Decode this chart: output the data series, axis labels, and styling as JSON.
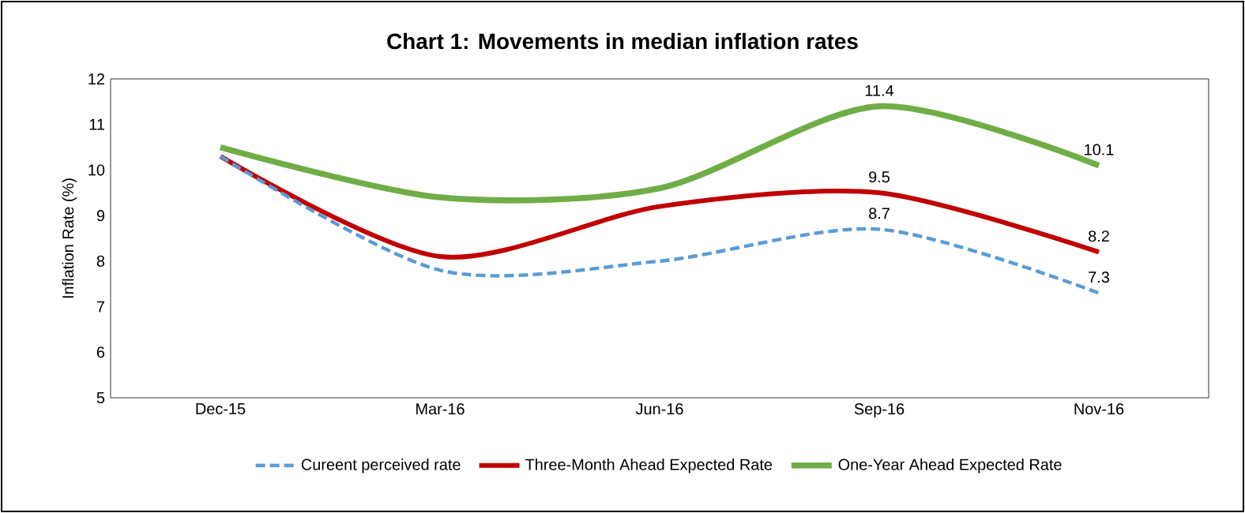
{
  "chart_data": {
    "type": "line",
    "title": "Chart 1: Movements in median inflation rates",
    "ylabel": "Inflation Rate (%)",
    "categories": [
      "Dec-15",
      "Mar-16",
      "Jun-16",
      "Sep-16",
      "Nov-16"
    ],
    "ylim": [
      5,
      12
    ],
    "yticks": [
      5,
      6,
      7,
      8,
      9,
      10,
      11,
      12
    ],
    "legend": "bottom",
    "series": [
      {
        "name": "Cureent perceived rate",
        "color": "#5b9bd5",
        "line_style": "dashed",
        "values": [
          10.3,
          7.8,
          8.0,
          8.7,
          7.3
        ],
        "value_labels": [
          null,
          null,
          null,
          "8.7",
          "7.3"
        ]
      },
      {
        "name": "Three-Month Ahead Expected Rate",
        "color": "#c00000",
        "line_style": "solid",
        "values": [
          10.3,
          8.1,
          9.2,
          9.5,
          8.2
        ],
        "value_labels": [
          null,
          null,
          null,
          "9.5",
          "8.2"
        ]
      },
      {
        "name": "One-Year Ahead Expected Rate",
        "color": "#70ad47",
        "line_style": "solid",
        "values": [
          10.5,
          9.4,
          9.6,
          11.4,
          10.1
        ],
        "value_labels": [
          null,
          null,
          null,
          "11.4",
          "10.1"
        ]
      }
    ]
  }
}
